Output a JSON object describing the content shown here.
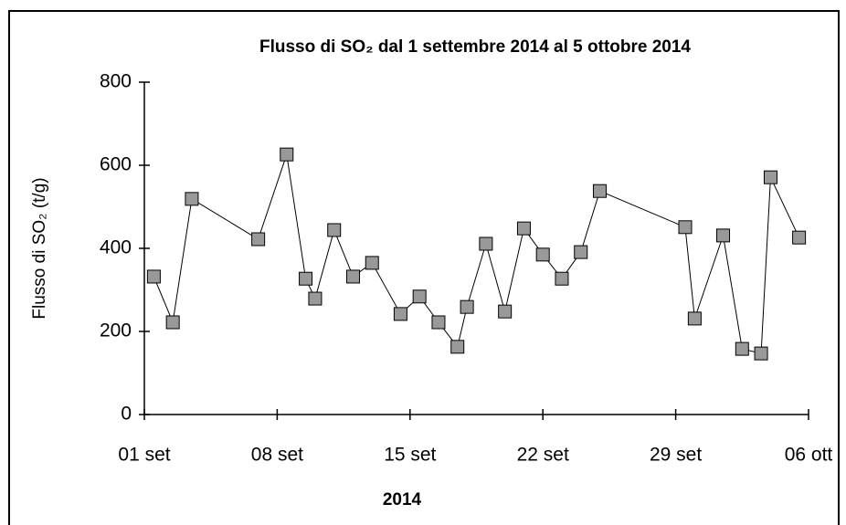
{
  "chart_data": {
    "type": "line",
    "title": "Flusso di SO₂ dal 1 settembre 2014 al 5 ottobre 2014",
    "x_label": "2014",
    "y_label": "Flusso di SO₂ (t/g)",
    "x": [
      1.5,
      2.5,
      3.5,
      7.0,
      8.5,
      9.5,
      10.0,
      11.0,
      12.0,
      13.0,
      14.5,
      15.5,
      16.5,
      17.5,
      18.0,
      19.0,
      20.0,
      21.0,
      22.0,
      23.0,
      24.0,
      25.0,
      29.5,
      30.0,
      31.5,
      32.5,
      33.5,
      34.0,
      35.5
    ],
    "series": [
      {
        "color": "#999999",
        "values": [
          332,
          222,
          519,
          422,
          626,
          327,
          279,
          444,
          332,
          365,
          242,
          284,
          222,
          163,
          259,
          411,
          248,
          448,
          385,
          327,
          391,
          538,
          451,
          231,
          431,
          158,
          147,
          571,
          426
        ]
      }
    ],
    "xlim": [
      1,
      36
    ],
    "xticks": [
      {
        "value": 1,
        "label": "01 set"
      },
      {
        "value": 8,
        "label": "08 set"
      },
      {
        "value": 15,
        "label": "15 set"
      },
      {
        "value": 22,
        "label": "22 set"
      },
      {
        "value": 29,
        "label": "29 set"
      },
      {
        "value": 36,
        "label": "06 ott"
      }
    ],
    "ylim": [
      0,
      800
    ],
    "yticks": [
      0,
      200,
      400,
      600,
      800
    ]
  }
}
